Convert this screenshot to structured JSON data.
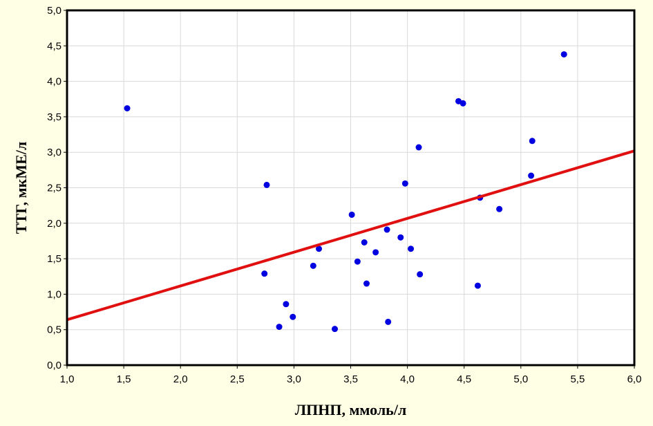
{
  "chart_data": {
    "type": "scatter",
    "xlabel": "ЛПНП, ммоль/л",
    "ylabel": "ТТГ, мкМЕ/л",
    "xlim": [
      1.0,
      6.0
    ],
    "ylim": [
      0.0,
      5.0
    ],
    "xticks": [
      "1,0",
      "1,5",
      "2,0",
      "2,5",
      "3,0",
      "3,5",
      "4,0",
      "4,5",
      "5,0",
      "5,5",
      "6,0"
    ],
    "yticks": [
      "0,0",
      "0,5",
      "1,0",
      "1,5",
      "2,0",
      "2,5",
      "3,0",
      "3,5",
      "4,0",
      "4,5",
      "5,0"
    ],
    "grid": true,
    "points": [
      {
        "x": 1.53,
        "y": 3.62
      },
      {
        "x": 2.74,
        "y": 1.29
      },
      {
        "x": 2.76,
        "y": 2.54
      },
      {
        "x": 2.87,
        "y": 0.54
      },
      {
        "x": 2.93,
        "y": 0.86
      },
      {
        "x": 2.99,
        "y": 0.68
      },
      {
        "x": 3.17,
        "y": 1.4
      },
      {
        "x": 3.22,
        "y": 1.64
      },
      {
        "x": 3.36,
        "y": 0.51
      },
      {
        "x": 3.51,
        "y": 2.12
      },
      {
        "x": 3.56,
        "y": 1.46
      },
      {
        "x": 3.62,
        "y": 1.73
      },
      {
        "x": 3.64,
        "y": 1.15
      },
      {
        "x": 3.72,
        "y": 1.59
      },
      {
        "x": 3.82,
        "y": 1.91
      },
      {
        "x": 3.83,
        "y": 0.61
      },
      {
        "x": 3.94,
        "y": 1.8
      },
      {
        "x": 3.98,
        "y": 2.56
      },
      {
        "x": 4.03,
        "y": 1.64
      },
      {
        "x": 4.1,
        "y": 3.07
      },
      {
        "x": 4.11,
        "y": 1.28
      },
      {
        "x": 4.45,
        "y": 3.72
      },
      {
        "x": 4.49,
        "y": 3.69
      },
      {
        "x": 4.62,
        "y": 1.12
      },
      {
        "x": 4.64,
        "y": 2.36
      },
      {
        "x": 4.81,
        "y": 2.2
      },
      {
        "x": 5.09,
        "y": 2.67
      },
      {
        "x": 5.1,
        "y": 3.16
      },
      {
        "x": 5.38,
        "y": 4.38
      }
    ],
    "trendline": {
      "x": [
        1.0,
        6.0
      ],
      "y": [
        0.64,
        3.02
      ]
    },
    "colors": {
      "points": "#0000e0",
      "trendline": "#e01010",
      "grid": "#d8d8d8",
      "background": "#ffffe6",
      "plot_area": "#ffffff"
    }
  }
}
